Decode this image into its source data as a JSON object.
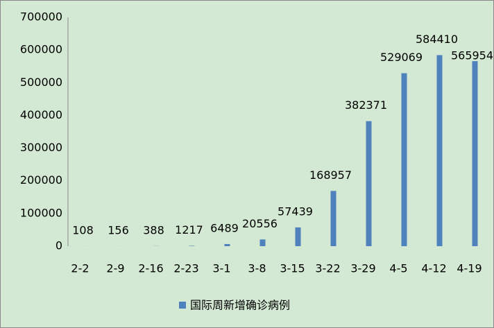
{
  "chart_data": {
    "type": "bar",
    "categories": [
      "2-2",
      "2-9",
      "2-16",
      "2-23",
      "3-1",
      "3-8",
      "3-15",
      "3-22",
      "3-29",
      "4-5",
      "4-12",
      "4-19"
    ],
    "series": [
      {
        "name": "国际周新增确诊病例",
        "color": "#4f81bd",
        "values": [
          108,
          156,
          388,
          1217,
          6489,
          20556,
          57439,
          168957,
          382371,
          529069,
          584410,
          565954
        ]
      }
    ],
    "ylim": [
      0,
      700000
    ],
    "yticks": [
      0,
      100000,
      200000,
      300000,
      400000,
      500000,
      600000,
      700000
    ],
    "grid": false,
    "legend": "bottom"
  }
}
